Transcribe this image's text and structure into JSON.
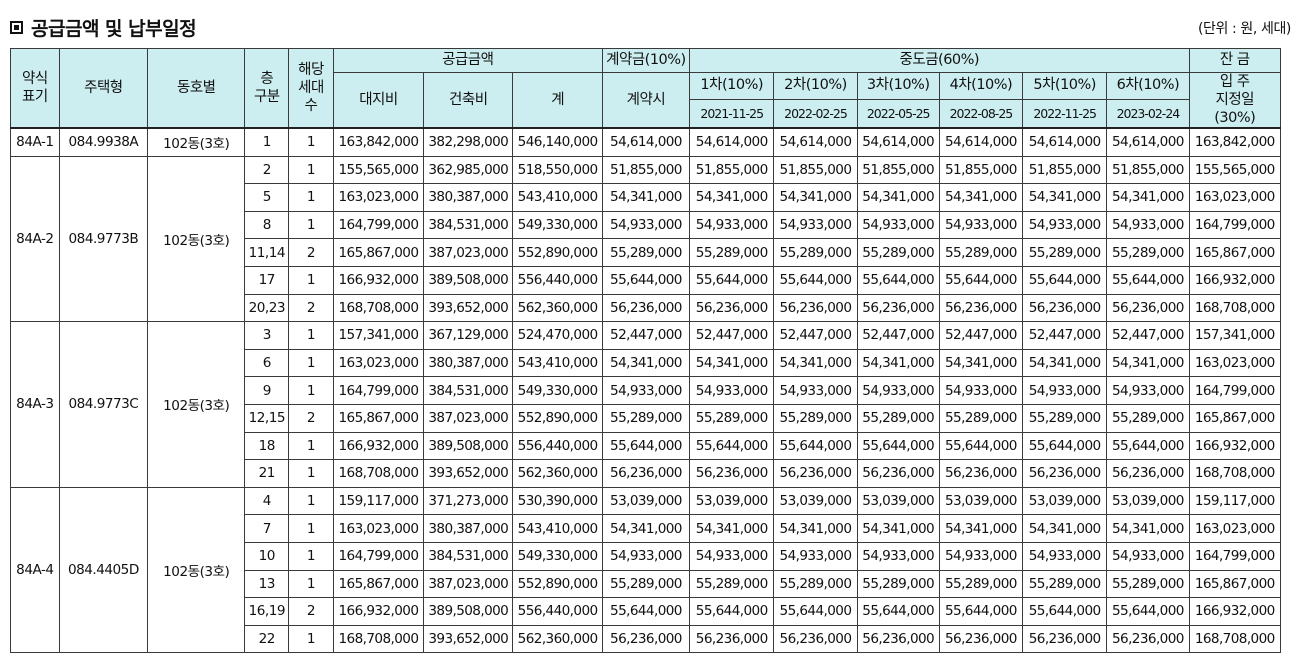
{
  "page": {
    "title": "공급금액 및 납부일정",
    "unit_note": "(단위 : 원, 세대)"
  },
  "header": {
    "abbr": "약식\n표기",
    "type": "주택형",
    "dong": "동호별",
    "floor": "층\n구분",
    "households": "해당\n세대\n수",
    "supply": "공급금액",
    "land": "대지비",
    "building": "건축비",
    "total": "계",
    "deposit_group": "계약금(10%)",
    "deposit": "계약시",
    "middle_group": "중도금(60%)",
    "middle": [
      {
        "label": "1차(10%)",
        "date": "2021-11-25"
      },
      {
        "label": "2차(10%)",
        "date": "2022-02-25"
      },
      {
        "label": "3차(10%)",
        "date": "2022-05-25"
      },
      {
        "label": "4차(10%)",
        "date": "2022-08-25"
      },
      {
        "label": "5차(10%)",
        "date": "2022-11-25"
      },
      {
        "label": "6차(10%)",
        "date": "2023-02-24"
      }
    ],
    "balance_group": "잔 금",
    "balance": "입 주\n지정일\n(30%)"
  },
  "groups": [
    {
      "abbr": "84A-1",
      "type": "084.9938A",
      "dong": "102동(3호)",
      "rows": [
        {
          "floor": "1",
          "hh": "1",
          "land": "163,842,000",
          "building": "382,298,000",
          "total": "546,140,000",
          "pay": "54,614,000",
          "balance": "163,842,000"
        }
      ]
    },
    {
      "abbr": "84A-2",
      "type": "084.9773B",
      "dong": "102동(3호)",
      "rows": [
        {
          "floor": "2",
          "hh": "1",
          "land": "155,565,000",
          "building": "362,985,000",
          "total": "518,550,000",
          "pay": "51,855,000",
          "balance": "155,565,000"
        },
        {
          "floor": "5",
          "hh": "1",
          "land": "163,023,000",
          "building": "380,387,000",
          "total": "543,410,000",
          "pay": "54,341,000",
          "balance": "163,023,000"
        },
        {
          "floor": "8",
          "hh": "1",
          "land": "164,799,000",
          "building": "384,531,000",
          "total": "549,330,000",
          "pay": "54,933,000",
          "balance": "164,799,000"
        },
        {
          "floor": "11,14",
          "hh": "2",
          "land": "165,867,000",
          "building": "387,023,000",
          "total": "552,890,000",
          "pay": "55,289,000",
          "balance": "165,867,000"
        },
        {
          "floor": "17",
          "hh": "1",
          "land": "166,932,000",
          "building": "389,508,000",
          "total": "556,440,000",
          "pay": "55,644,000",
          "balance": "166,932,000"
        },
        {
          "floor": "20,23",
          "hh": "2",
          "land": "168,708,000",
          "building": "393,652,000",
          "total": "562,360,000",
          "pay": "56,236,000",
          "balance": "168,708,000"
        }
      ]
    },
    {
      "abbr": "84A-3",
      "type": "084.9773C",
      "dong": "102동(3호)",
      "rows": [
        {
          "floor": "3",
          "hh": "1",
          "land": "157,341,000",
          "building": "367,129,000",
          "total": "524,470,000",
          "pay": "52,447,000",
          "balance": "157,341,000"
        },
        {
          "floor": "6",
          "hh": "1",
          "land": "163,023,000",
          "building": "380,387,000",
          "total": "543,410,000",
          "pay": "54,341,000",
          "balance": "163,023,000"
        },
        {
          "floor": "9",
          "hh": "1",
          "land": "164,799,000",
          "building": "384,531,000",
          "total": "549,330,000",
          "pay": "54,933,000",
          "balance": "164,799,000"
        },
        {
          "floor": "12,15",
          "hh": "2",
          "land": "165,867,000",
          "building": "387,023,000",
          "total": "552,890,000",
          "pay": "55,289,000",
          "balance": "165,867,000"
        },
        {
          "floor": "18",
          "hh": "1",
          "land": "166,932,000",
          "building": "389,508,000",
          "total": "556,440,000",
          "pay": "55,644,000",
          "balance": "166,932,000"
        },
        {
          "floor": "21",
          "hh": "1",
          "land": "168,708,000",
          "building": "393,652,000",
          "total": "562,360,000",
          "pay": "56,236,000",
          "balance": "168,708,000"
        }
      ]
    },
    {
      "abbr": "84A-4",
      "type": "084.4405D",
      "dong": "102동(3호)",
      "rows": [
        {
          "floor": "4",
          "hh": "1",
          "land": "159,117,000",
          "building": "371,273,000",
          "total": "530,390,000",
          "pay": "53,039,000",
          "balance": "159,117,000"
        },
        {
          "floor": "7",
          "hh": "1",
          "land": "163,023,000",
          "building": "380,387,000",
          "total": "543,410,000",
          "pay": "54,341,000",
          "balance": "163,023,000"
        },
        {
          "floor": "10",
          "hh": "1",
          "land": "164,799,000",
          "building": "384,531,000",
          "total": "549,330,000",
          "pay": "54,933,000",
          "balance": "164,799,000"
        },
        {
          "floor": "13",
          "hh": "1",
          "land": "165,867,000",
          "building": "387,023,000",
          "total": "552,890,000",
          "pay": "55,289,000",
          "balance": "165,867,000"
        },
        {
          "floor": "16,19",
          "hh": "2",
          "land": "166,932,000",
          "building": "389,508,000",
          "total": "556,440,000",
          "pay": "55,644,000",
          "balance": "166,932,000"
        },
        {
          "floor": "22",
          "hh": "1",
          "land": "168,708,000",
          "building": "393,652,000",
          "total": "562,360,000",
          "pay": "56,236,000",
          "balance": "168,708,000"
        }
      ]
    }
  ]
}
